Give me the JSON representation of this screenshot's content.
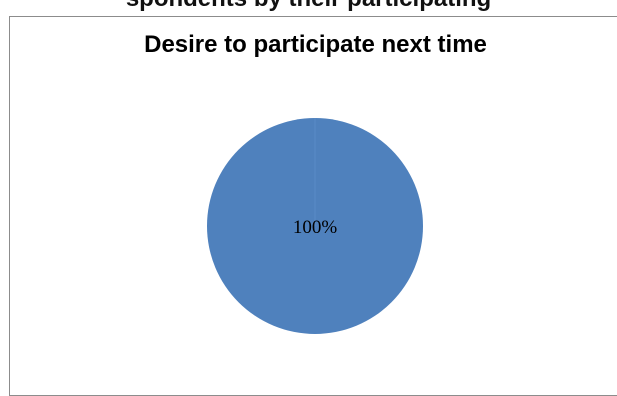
{
  "page_header": {
    "text": "spondents by their participating"
  },
  "chart_data": {
    "type": "pie",
    "title": "Desire to participate next time",
    "slices": [
      {
        "value": 100,
        "label": "100%",
        "color": "#4f81bd"
      }
    ]
  }
}
